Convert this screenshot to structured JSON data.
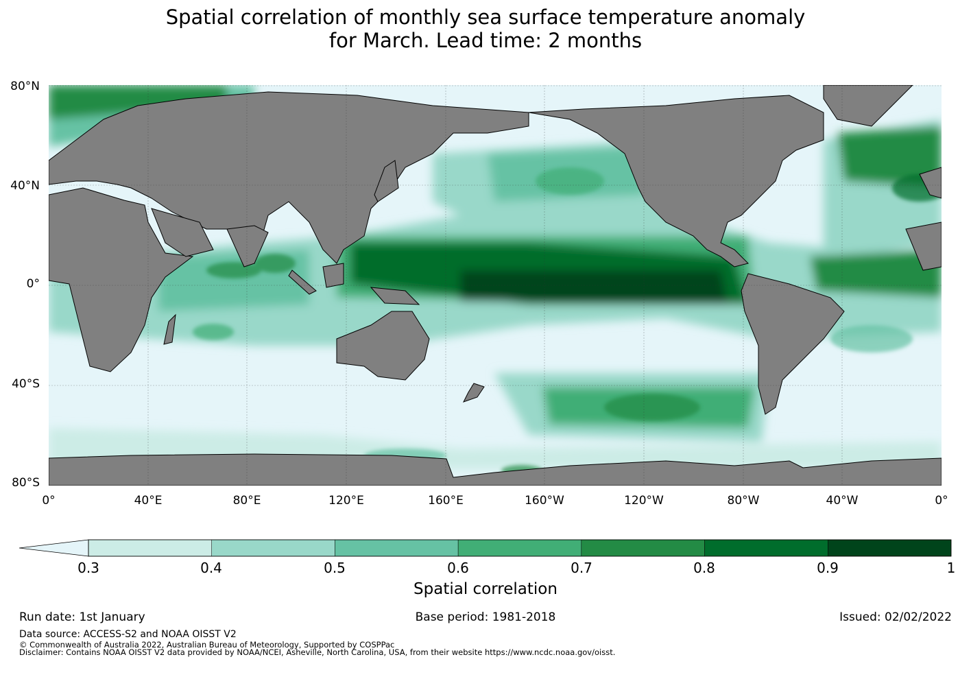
{
  "title": {
    "line1": "Spatial correlation of monthly sea surface temperature anomaly",
    "line2": "for March. Lead time: 2 months"
  },
  "map": {
    "projection": "Plate Carree, 0° to 360°",
    "land_color": "#808080",
    "lat_labels": [
      "80°N",
      "40°N",
      "0°",
      "40°S",
      "80°S"
    ],
    "lon_labels": [
      "0°",
      "40°E",
      "80°E",
      "120°E",
      "160°E",
      "160°W",
      "120°W",
      "80°W",
      "40°W",
      "0°"
    ]
  },
  "colorbar": {
    "ticks": [
      "0.3",
      "0.4",
      "0.5",
      "0.6",
      "0.7",
      "0.8",
      "0.9",
      "1"
    ],
    "label": "Spatial correlation",
    "under_color": "#e5f5f9",
    "colors": [
      "#ccece6",
      "#99d8c9",
      "#66c2a4",
      "#41ae76",
      "#238b45",
      "#006d2c",
      "#00441b"
    ]
  },
  "footer": {
    "run_date": "Run date: 1st January",
    "base_period": "Base period: 1981-2018",
    "issued": "Issued: 02/02/2022",
    "data_source": "Data source: ACCESS-S2 and NOAA OISST V2",
    "copyright": "© Commonwealth of Australia 2022, Australian Bureau of Meteorology, Supported by COSPPac",
    "disclaimer": "Disclaimer: Contains NOAA OISST V2 data provided by NOAA/NCEI, Asheville, North Carolina, USA, from their website https://www.ncdc.noaa.gov/oisst."
  }
}
